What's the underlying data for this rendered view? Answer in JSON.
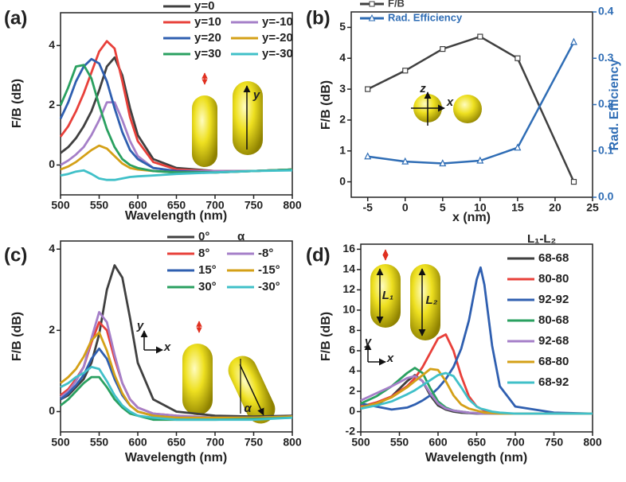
{
  "chart_data": [
    {
      "type": "line",
      "panel_label": "(a)",
      "x_label": "Wavelength (nm)",
      "y_label": "F/B (dB)",
      "xlim": [
        500,
        800
      ],
      "ylim": [
        -1,
        5.1
      ],
      "xticks": [
        500,
        550,
        600,
        650,
        700,
        750,
        800
      ],
      "yticks": [
        0,
        2,
        4
      ],
      "annotations": [
        "y"
      ],
      "x": [
        500,
        510,
        520,
        530,
        540,
        550,
        560,
        570,
        580,
        590,
        600,
        620,
        650,
        700,
        750,
        800
      ],
      "series": [
        {
          "name": "y=0",
          "color": "#404040",
          "values": [
            0.4,
            0.6,
            0.9,
            1.3,
            1.8,
            2.5,
            3.3,
            3.6,
            3.0,
            1.9,
            1.0,
            0.2,
            -0.1,
            -0.2,
            -0.2,
            -0.15
          ]
        },
        {
          "name": "y=10",
          "color": "#e8403a",
          "values": [
            0.95,
            1.3,
            1.8,
            2.4,
            3.1,
            3.8,
            4.15,
            3.9,
            2.8,
            1.6,
            0.8,
            0.1,
            -0.15,
            -0.2,
            -0.2,
            -0.15
          ]
        },
        {
          "name": "y=-10",
          "color": "#a57fc8",
          "values": [
            0.0,
            0.15,
            0.35,
            0.6,
            1.0,
            1.5,
            2.1,
            2.1,
            1.5,
            0.8,
            0.3,
            -0.1,
            -0.2,
            -0.2,
            -0.2,
            -0.15
          ]
        },
        {
          "name": "y=20",
          "color": "#2f5fb0",
          "values": [
            1.55,
            2.1,
            2.8,
            3.3,
            3.55,
            3.4,
            2.8,
            1.9,
            1.1,
            0.5,
            0.2,
            -0.1,
            -0.2,
            -0.25,
            -0.2,
            -0.15
          ]
        },
        {
          "name": "y=-20",
          "color": "#d4a017",
          "values": [
            -0.15,
            -0.05,
            0.1,
            0.3,
            0.5,
            0.65,
            0.55,
            0.3,
            0.05,
            -0.1,
            -0.15,
            -0.2,
            -0.25,
            -0.25,
            -0.2,
            -0.15
          ]
        },
        {
          "name": "y=30",
          "color": "#2aa060",
          "values": [
            2.0,
            2.6,
            3.3,
            3.35,
            2.9,
            2.0,
            1.2,
            0.6,
            0.2,
            0.0,
            -0.1,
            -0.2,
            -0.25,
            -0.25,
            -0.2,
            -0.15
          ]
        },
        {
          "name": "y=-30",
          "color": "#40c0c8",
          "values": [
            -0.35,
            -0.3,
            -0.22,
            -0.18,
            -0.3,
            -0.45,
            -0.5,
            -0.5,
            -0.45,
            -0.4,
            -0.38,
            -0.35,
            -0.3,
            -0.25,
            -0.2,
            -0.18
          ]
        }
      ]
    },
    {
      "type": "line",
      "panel_label": "(b)",
      "x_label": "x (nm)",
      "y_label": "F/B (dB)",
      "y2_label": "Rad. Efficiency",
      "xlim": [
        -7.2,
        25
      ],
      "ylim": [
        -0.5,
        5.5
      ],
      "y2lim": [
        0,
        0.4
      ],
      "xticks": [
        -5,
        0,
        5,
        10,
        15,
        20,
        25
      ],
      "yticks": [
        0,
        1,
        2,
        3,
        4,
        5
      ],
      "y2ticks": [
        {
          "value": 0,
          "label": "0.0"
        },
        0.1,
        0.2,
        0.3,
        0.4
      ],
      "annotations": [
        "z",
        "x"
      ],
      "x": [
        -5,
        0,
        5,
        10,
        15,
        22.5
      ],
      "series": [
        {
          "name": "F/B",
          "color": "#404040",
          "marker": "square",
          "values": [
            3.0,
            3.6,
            4.3,
            4.7,
            4.0,
            0.0
          ]
        },
        {
          "name": "Rad. Efficiency",
          "color": "#2f6db5",
          "marker": "triangle",
          "axis": "y2",
          "values": [
            0.088,
            0.077,
            0.073,
            0.079,
            0.107,
            0.335
          ]
        }
      ]
    },
    {
      "type": "line",
      "panel_label": "(c)",
      "x_label": "Wavelength (nm)",
      "y_label": "F/B (dB)",
      "legend_title": "α",
      "xlim": [
        500,
        800
      ],
      "ylim": [
        -0.5,
        4.2
      ],
      "xticks": [
        500,
        550,
        600,
        650,
        700,
        750,
        800
      ],
      "yticks": [
        0,
        2,
        4
      ],
      "annotations": [
        "y",
        "x",
        "α"
      ],
      "x": [
        500,
        510,
        520,
        530,
        540,
        550,
        560,
        570,
        580,
        590,
        600,
        620,
        650,
        700,
        750,
        800
      ],
      "series": [
        {
          "name": "0°",
          "color": "#404040",
          "values": [
            0.3,
            0.4,
            0.6,
            0.8,
            1.2,
            1.9,
            3.0,
            3.6,
            3.3,
            2.3,
            1.2,
            0.3,
            0.0,
            -0.1,
            -0.12,
            -0.1
          ]
        },
        {
          "name": "8°",
          "color": "#e8403a",
          "values": [
            0.4,
            0.55,
            0.8,
            1.1,
            1.7,
            2.2,
            2.0,
            1.3,
            0.7,
            0.3,
            0.1,
            -0.05,
            -0.1,
            -0.15,
            -0.15,
            -0.12
          ]
        },
        {
          "name": "-8°",
          "color": "#a57fc8",
          "values": [
            0.35,
            0.5,
            0.75,
            1.1,
            1.8,
            2.45,
            2.2,
            1.4,
            0.7,
            0.3,
            0.1,
            -0.05,
            -0.1,
            -0.15,
            -0.15,
            -0.12
          ]
        },
        {
          "name": "15°",
          "color": "#2f5fb0",
          "values": [
            0.3,
            0.45,
            0.65,
            0.9,
            1.3,
            1.55,
            1.3,
            0.8,
            0.4,
            0.15,
            0.0,
            -0.1,
            -0.15,
            -0.15,
            -0.15,
            -0.12
          ]
        },
        {
          "name": "-15°",
          "color": "#d4a017",
          "values": [
            0.7,
            0.85,
            1.05,
            1.35,
            1.75,
            1.95,
            1.5,
            0.9,
            0.45,
            0.15,
            0.0,
            -0.1,
            -0.15,
            -0.15,
            -0.15,
            -0.12
          ]
        },
        {
          "name": "30°",
          "color": "#2aa060",
          "values": [
            0.15,
            0.3,
            0.5,
            0.7,
            0.85,
            0.85,
            0.6,
            0.3,
            0.1,
            -0.05,
            -0.1,
            -0.2,
            -0.2,
            -0.2,
            -0.18,
            -0.15
          ]
        },
        {
          "name": "-30°",
          "color": "#40c0c8",
          "values": [
            0.6,
            0.7,
            0.85,
            0.95,
            1.1,
            1.05,
            0.75,
            0.4,
            0.15,
            0.0,
            -0.1,
            -0.15,
            -0.2,
            -0.2,
            -0.2,
            -0.15
          ]
        }
      ]
    },
    {
      "type": "line",
      "panel_label": "(d)",
      "x_label": "Wavelength (nm)",
      "y_label": "F/B (dB)",
      "legend_title": "L₁-L₂",
      "xlim": [
        500,
        800
      ],
      "ylim": [
        -2,
        16.5
      ],
      "xticks": [
        500,
        550,
        600,
        650,
        700,
        750,
        800
      ],
      "yticks": [
        -2,
        0,
        2,
        4,
        6,
        8,
        10,
        12,
        14,
        16
      ],
      "annotations": [
        "y",
        "x",
        "L₁",
        "L₂"
      ],
      "x": [
        500,
        520,
        540,
        560,
        570,
        580,
        590,
        600,
        610,
        620,
        630,
        640,
        650,
        655,
        660,
        670,
        680,
        700,
        750,
        800
      ],
      "series": [
        {
          "name": "68-68",
          "color": "#404040",
          "values": [
            0.3,
            0.7,
            1.5,
            3.0,
            3.6,
            3.0,
            1.6,
            0.6,
            0.2,
            0.0,
            -0.1,
            -0.15,
            -0.2,
            -0.2,
            -0.2,
            -0.2,
            -0.2,
            -0.2,
            -0.2,
            -0.2
          ]
        },
        {
          "name": "80-80",
          "color": "#e8403a",
          "values": [
            0.5,
            0.9,
            1.5,
            2.5,
            3.3,
            4.4,
            5.8,
            7.2,
            7.6,
            6.0,
            3.5,
            1.5,
            0.5,
            0.3,
            0.1,
            -0.1,
            -0.2,
            -0.2,
            -0.2,
            -0.2
          ]
        },
        {
          "name": "92-92",
          "color": "#2f5fb0",
          "values": [
            0.8,
            0.5,
            0.2,
            0.4,
            0.7,
            1.1,
            1.6,
            2.3,
            3.2,
            4.4,
            6.2,
            9.0,
            13.0,
            14.2,
            12.5,
            6.5,
            2.5,
            0.5,
            -0.1,
            -0.2
          ]
        },
        {
          "name": "80-68",
          "color": "#2aa060",
          "values": [
            0.8,
            1.5,
            2.5,
            3.8,
            4.3,
            3.8,
            2.3,
            1.0,
            0.4,
            0.1,
            0.0,
            -0.1,
            -0.15,
            -0.2,
            -0.2,
            -0.2,
            -0.2,
            -0.2,
            -0.2,
            -0.2
          ]
        },
        {
          "name": "92-68",
          "color": "#a57fc8",
          "values": [
            1.1,
            1.8,
            2.5,
            3.3,
            3.5,
            3.0,
            1.8,
            0.8,
            0.3,
            0.1,
            0.0,
            -0.1,
            -0.15,
            -0.2,
            -0.2,
            -0.2,
            -0.2,
            -0.2,
            -0.2,
            -0.2
          ]
        },
        {
          "name": "68-80",
          "color": "#d4a017",
          "values": [
            0.4,
            0.8,
            1.4,
            2.4,
            3.0,
            3.6,
            4.2,
            4.1,
            3.0,
            1.6,
            0.7,
            0.3,
            0.1,
            0.0,
            -0.1,
            -0.15,
            -0.2,
            -0.2,
            -0.2,
            -0.2
          ]
        },
        {
          "name": "68-92",
          "color": "#40c0c8",
          "values": [
            0.3,
            0.6,
            1.0,
            1.7,
            2.1,
            2.6,
            3.1,
            3.6,
            3.8,
            3.5,
            2.4,
            1.2,
            0.5,
            0.3,
            0.2,
            0.0,
            -0.1,
            -0.2,
            -0.2,
            -0.2
          ]
        }
      ]
    }
  ]
}
